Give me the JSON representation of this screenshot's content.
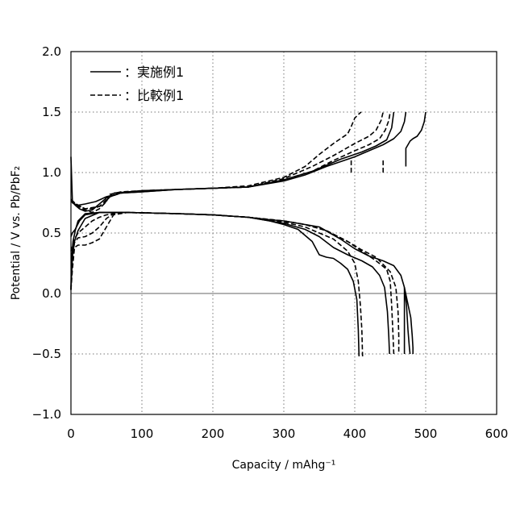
{
  "chart_data": {
    "type": "line",
    "xlabel": "Capacity / mAhg⁻¹",
    "ylabel": "Potential / V vs. Pb/PbF₂",
    "xlim": [
      0,
      600
    ],
    "ylim": [
      -1.0,
      2.0
    ],
    "xticks": [
      "0",
      "100",
      "200",
      "300",
      "400",
      "500",
      "600"
    ],
    "yticks": [
      "−1.0",
      "−0.5",
      "0.0",
      "0.5",
      "1.0",
      "1.5",
      "2.0"
    ],
    "grid": "dotted",
    "legend_position": "top-left",
    "legend": [
      {
        "label": "：実施例1",
        "dash": "solid"
      },
      {
        "label": "：比較例1",
        "dash": "dashed"
      }
    ],
    "series": [
      {
        "group": "実施例1",
        "dash": "solid",
        "x": [
          0,
          2,
          5,
          10,
          20,
          35,
          50,
          70,
          100,
          150,
          200,
          250,
          300,
          330,
          360,
          380,
          400,
          420,
          440,
          455,
          465,
          470,
          472
        ],
        "y": [
          1.13,
          0.76,
          0.74,
          0.73,
          0.74,
          0.76,
          0.8,
          0.83,
          0.84,
          0.86,
          0.87,
          0.88,
          0.93,
          0.98,
          1.05,
          1.09,
          1.13,
          1.18,
          1.23,
          1.28,
          1.34,
          1.42,
          1.5
        ]
      },
      {
        "group": "実施例1",
        "dash": "solid",
        "x": [
          0,
          3,
          6,
          12,
          20,
          30,
          50,
          70,
          100,
          150,
          200,
          250,
          300,
          340,
          380,
          410,
          430,
          445,
          452,
          455
        ],
        "y": [
          0.77,
          0.75,
          0.73,
          0.7,
          0.68,
          0.69,
          0.79,
          0.83,
          0.84,
          0.86,
          0.87,
          0.88,
          0.94,
          1.01,
          1.11,
          1.17,
          1.22,
          1.27,
          1.37,
          1.5
        ]
      },
      {
        "group": "実施例1",
        "dash": "solid",
        "x": [
          472,
          472,
          476,
          478,
          482,
          488,
          494,
          498,
          500
        ],
        "y": [
          1.05,
          1.2,
          1.24,
          1.26,
          1.28,
          1.3,
          1.35,
          1.42,
          1.5
        ]
      },
      {
        "group": "実施例1",
        "dash": "solid",
        "x": [
          0,
          1,
          3,
          6,
          10,
          20,
          40,
          80,
          150,
          200,
          250,
          280,
          300,
          330,
          350,
          380,
          400,
          420,
          440,
          455,
          465,
          470,
          473,
          475,
          477,
          478
        ],
        "y": [
          0.05,
          0.3,
          0.43,
          0.52,
          0.6,
          0.66,
          0.67,
          0.67,
          0.66,
          0.65,
          0.63,
          0.61,
          0.6,
          0.57,
          0.55,
          0.45,
          0.37,
          0.31,
          0.27,
          0.23,
          0.15,
          0.05,
          -0.1,
          -0.3,
          -0.45,
          -0.5
        ]
      },
      {
        "group": "実施例1",
        "dash": "solid",
        "x": [
          0,
          2,
          5,
          10,
          20,
          40,
          80,
          150,
          200,
          250,
          280,
          300,
          330,
          350,
          370,
          390,
          410,
          425,
          435,
          442,
          446,
          448,
          449
        ],
        "y": [
          0.03,
          0.3,
          0.43,
          0.52,
          0.62,
          0.67,
          0.67,
          0.66,
          0.65,
          0.63,
          0.6,
          0.58,
          0.53,
          0.47,
          0.38,
          0.32,
          0.27,
          0.22,
          0.15,
          0.05,
          -0.15,
          -0.35,
          -0.5
        ]
      },
      {
        "group": "実施例1",
        "dash": "solid",
        "x": [
          0,
          2,
          6,
          12,
          20,
          40,
          80,
          150,
          200,
          250,
          280,
          300,
          320,
          340,
          350,
          360,
          370,
          380,
          390,
          398,
          403,
          405,
          406
        ],
        "y": [
          0.47,
          0.5,
          0.53,
          0.6,
          0.65,
          0.67,
          0.67,
          0.66,
          0.65,
          0.63,
          0.6,
          0.57,
          0.53,
          0.43,
          0.32,
          0.3,
          0.29,
          0.25,
          0.2,
          0.1,
          -0.05,
          -0.3,
          -0.52
        ]
      },
      {
        "group": "実施例1",
        "dash": "solid",
        "x": [
          470,
          470,
          479,
          481,
          482,
          482
        ],
        "y": [
          -0.5,
          0.05,
          -0.2,
          -0.35,
          -0.45,
          -0.5
        ]
      },
      {
        "group": "比較例1",
        "dash": "dashed",
        "x": [
          0,
          2,
          5,
          10,
          20,
          30,
          40,
          50,
          55,
          70,
          100,
          150,
          200,
          250,
          300,
          330,
          350,
          370,
          390,
          395,
          400,
          405,
          409
        ],
        "y": [
          0.77,
          0.75,
          0.74,
          0.72,
          0.69,
          0.67,
          0.7,
          0.76,
          0.82,
          0.84,
          0.85,
          0.86,
          0.87,
          0.89,
          0.96,
          1.05,
          1.15,
          1.24,
          1.32,
          1.38,
          1.45,
          1.48,
          1.5
        ]
      },
      {
        "group": "比較例1",
        "dash": "dashed",
        "x": [
          0,
          5,
          10,
          20,
          30,
          45,
          55,
          70,
          100,
          150,
          200,
          250,
          300,
          340,
          370,
          400,
          420,
          430,
          437,
          440
        ],
        "y": [
          0.78,
          0.75,
          0.73,
          0.7,
          0.7,
          0.73,
          0.8,
          0.83,
          0.85,
          0.86,
          0.87,
          0.88,
          0.95,
          1.05,
          1.14,
          1.24,
          1.3,
          1.35,
          1.43,
          1.5
        ]
      },
      {
        "group": "比較例1",
        "dash": "dashed",
        "x": [
          0,
          10,
          20,
          40,
          60,
          100,
          150,
          200,
          250,
          300,
          340,
          370,
          400,
          420,
          435,
          443,
          448,
          450
        ],
        "y": [
          0.77,
          0.73,
          0.7,
          0.72,
          0.83,
          0.85,
          0.86,
          0.87,
          0.88,
          0.94,
          1.01,
          1.1,
          1.18,
          1.23,
          1.28,
          1.35,
          1.43,
          1.5
        ]
      },
      {
        "group": "比較例1",
        "dash": "dashed",
        "x": [
          0,
          2,
          5,
          10,
          20,
          30,
          40,
          50,
          60,
          80,
          150,
          200,
          250,
          300,
          330,
          350,
          370,
          390,
          400,
          405,
          408,
          410,
          411
        ],
        "y": [
          0.03,
          0.3,
          0.42,
          0.46,
          0.47,
          0.5,
          0.55,
          0.62,
          0.66,
          0.67,
          0.66,
          0.65,
          0.63,
          0.59,
          0.55,
          0.5,
          0.45,
          0.35,
          0.25,
          0.1,
          -0.1,
          -0.3,
          -0.52
        ]
      },
      {
        "group": "比較例1",
        "dash": "dashed",
        "x": [
          0,
          2,
          5,
          10,
          20,
          30,
          40,
          50,
          60,
          80,
          150,
          200,
          250,
          300,
          330,
          360,
          390,
          410,
          430,
          445,
          450,
          452,
          454,
          455
        ],
        "y": [
          0.03,
          0.2,
          0.38,
          0.4,
          0.4,
          0.42,
          0.45,
          0.55,
          0.65,
          0.67,
          0.66,
          0.65,
          0.63,
          0.6,
          0.57,
          0.52,
          0.43,
          0.35,
          0.27,
          0.2,
          0.1,
          -0.1,
          -0.35,
          -0.5
        ]
      },
      {
        "group": "比較例1",
        "dash": "dashed",
        "x": [
          0,
          5,
          10,
          20,
          30,
          40,
          50,
          70,
          150,
          200,
          250,
          300,
          330,
          360,
          390,
          410,
          430,
          450,
          458,
          461,
          462,
          462
        ],
        "y": [
          0.35,
          0.45,
          0.5,
          0.55,
          0.6,
          0.63,
          0.65,
          0.67,
          0.66,
          0.65,
          0.63,
          0.6,
          0.57,
          0.52,
          0.43,
          0.36,
          0.3,
          0.18,
          0.05,
          -0.15,
          -0.35,
          -0.5
        ]
      },
      {
        "group": "比較例1",
        "dash": "dashed",
        "x": [
          395,
          395
        ],
        "y": [
          1.0,
          1.1
        ]
      },
      {
        "group": "比較例1",
        "dash": "dashed",
        "x": [
          440,
          440
        ],
        "y": [
          1.0,
          1.1
        ]
      }
    ]
  }
}
